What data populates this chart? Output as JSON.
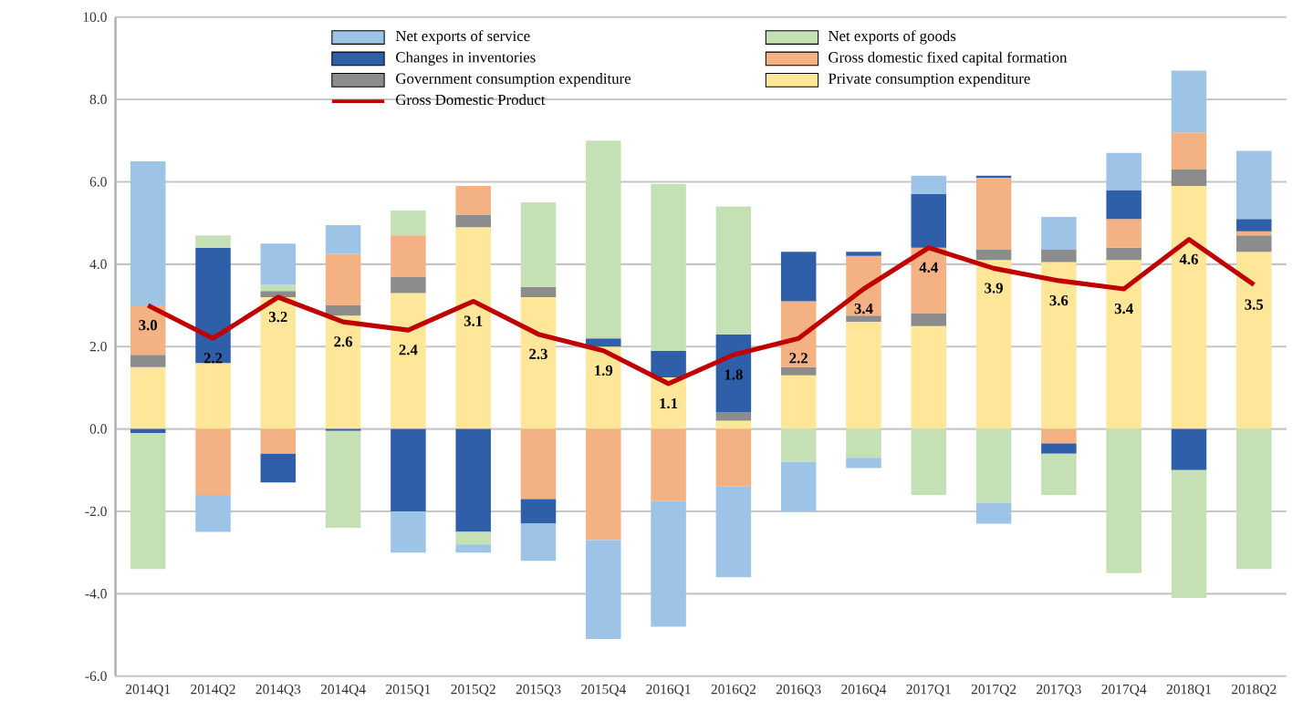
{
  "chart_data": {
    "type": "bar",
    "stacked": true,
    "categories": [
      "2014Q1",
      "2014Q2",
      "2014Q3",
      "2014Q4",
      "2015Q1",
      "2015Q2",
      "2015Q3",
      "2015Q4",
      "2016Q1",
      "2016Q2",
      "2016Q3",
      "2016Q4",
      "2017Q1",
      "2017Q2",
      "2017Q3",
      "2017Q4",
      "2018Q1",
      "2018Q2"
    ],
    "series": [
      {
        "name": "Private consumption expenditure",
        "color": "#ffe699",
        "values": [
          1.5,
          1.6,
          3.2,
          2.75,
          3.3,
          4.9,
          3.2,
          2.0,
          1.25,
          0.2,
          1.3,
          2.6,
          2.5,
          4.1,
          4.05,
          4.1,
          5.9,
          4.3
        ]
      },
      {
        "name": "Government consumption expenditure",
        "color": "#8c8c8c",
        "values": [
          0.3,
          null,
          0.15,
          0.25,
          0.4,
          0.3,
          0.25,
          null,
          null,
          0.2,
          0.2,
          0.15,
          0.3,
          0.25,
          0.3,
          0.3,
          0.4,
          0.4
        ]
      },
      {
        "name": "Gross domestic fixed capital formation",
        "color": "#f4b183",
        "values": [
          1.2,
          -1.6,
          -0.6,
          1.25,
          1.0,
          0.7,
          -1.7,
          -2.7,
          -1.75,
          -1.4,
          1.6,
          1.45,
          1.6,
          1.75,
          -0.35,
          0.7,
          0.9,
          0.1
        ]
      },
      {
        "name": "Changes in inventories",
        "color": "#2e5fa8",
        "values": [
          -0.1,
          2.8,
          -0.7,
          -0.05,
          -2.0,
          -2.5,
          -0.6,
          0.2,
          0.65,
          1.9,
          1.2,
          0.1,
          1.3,
          0.05,
          -0.25,
          0.7,
          -1.0,
          0.3
        ]
      },
      {
        "name": "Net exports of goods",
        "color": "#c5e0b4",
        "values": [
          -3.3,
          0.3,
          0.15,
          -2.35,
          0.6,
          -0.3,
          2.05,
          4.8,
          4.05,
          3.1,
          -0.8,
          -0.7,
          -1.6,
          -1.8,
          -1.0,
          -3.5,
          -3.1,
          -3.4
        ]
      },
      {
        "name": "Net exports of service",
        "color": "#9dc3e6",
        "values": [
          3.5,
          -0.9,
          1.0,
          0.7,
          -1.0,
          -0.2,
          -0.9,
          -2.4,
          -3.05,
          -2.2,
          -1.2,
          -0.25,
          0.45,
          -0.5,
          0.8,
          0.9,
          1.5,
          1.65
        ]
      },
      {
        "name": "Gross Domestic Product",
        "type": "line",
        "color": "#c00000",
        "values": [
          3.0,
          2.2,
          3.2,
          2.6,
          2.4,
          3.1,
          2.3,
          1.9,
          1.1,
          1.8,
          2.2,
          3.4,
          4.4,
          3.9,
          3.6,
          3.4,
          4.6,
          3.5
        ],
        "value_labels": [
          "3.0",
          "2.2",
          "3.2",
          "2.6",
          "2.4",
          "3.1",
          "2.3",
          "1.9",
          "1.1",
          "1.8",
          "2.2",
          "3.4",
          "4.4",
          "3.9",
          "3.6",
          "3.4",
          "4.6",
          "3.5"
        ]
      }
    ],
    "ylim": [
      -6,
      10
    ],
    "yticks": [
      {
        "value": -6,
        "label": "-6.0"
      },
      {
        "value": -4,
        "label": "-4.0"
      },
      {
        "value": -2,
        "label": "-2.0"
      },
      {
        "value": 0,
        "label": "0.0"
      },
      {
        "value": 2,
        "label": "2.0"
      },
      {
        "value": 4,
        "label": "4.0"
      },
      {
        "value": 6,
        "label": "6.0"
      },
      {
        "value": 8,
        "label": "8.0"
      },
      {
        "value": 10,
        "label": "10.0"
      }
    ],
    "grid": "y",
    "legend": "top"
  }
}
